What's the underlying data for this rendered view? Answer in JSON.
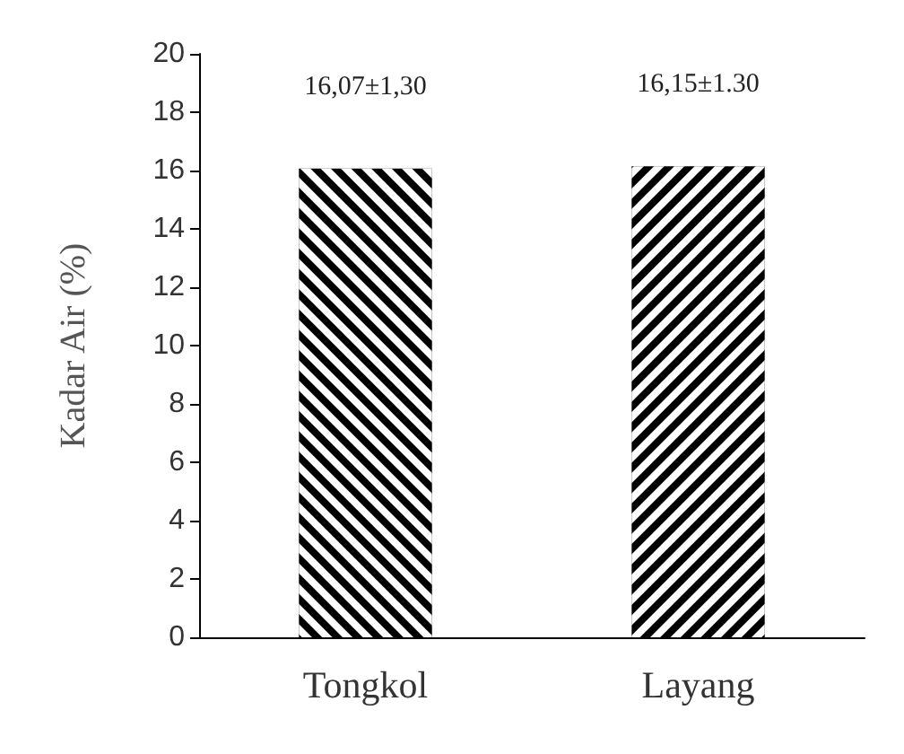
{
  "chart_data": {
    "type": "bar",
    "ylabel": "Kadar Air (%)",
    "categories": [
      "Tongkol",
      "Layang"
    ],
    "values": [
      16.07,
      16.15
    ],
    "value_labels": [
      "16,07±1,30",
      "16,15±1.30"
    ],
    "colors": [
      "#000000",
      "#000000"
    ],
    "ylim": [
      0,
      20
    ],
    "yticks": [
      0,
      2,
      4,
      6,
      8,
      10,
      12,
      14,
      16,
      18,
      20
    ],
    "grid": false
  }
}
